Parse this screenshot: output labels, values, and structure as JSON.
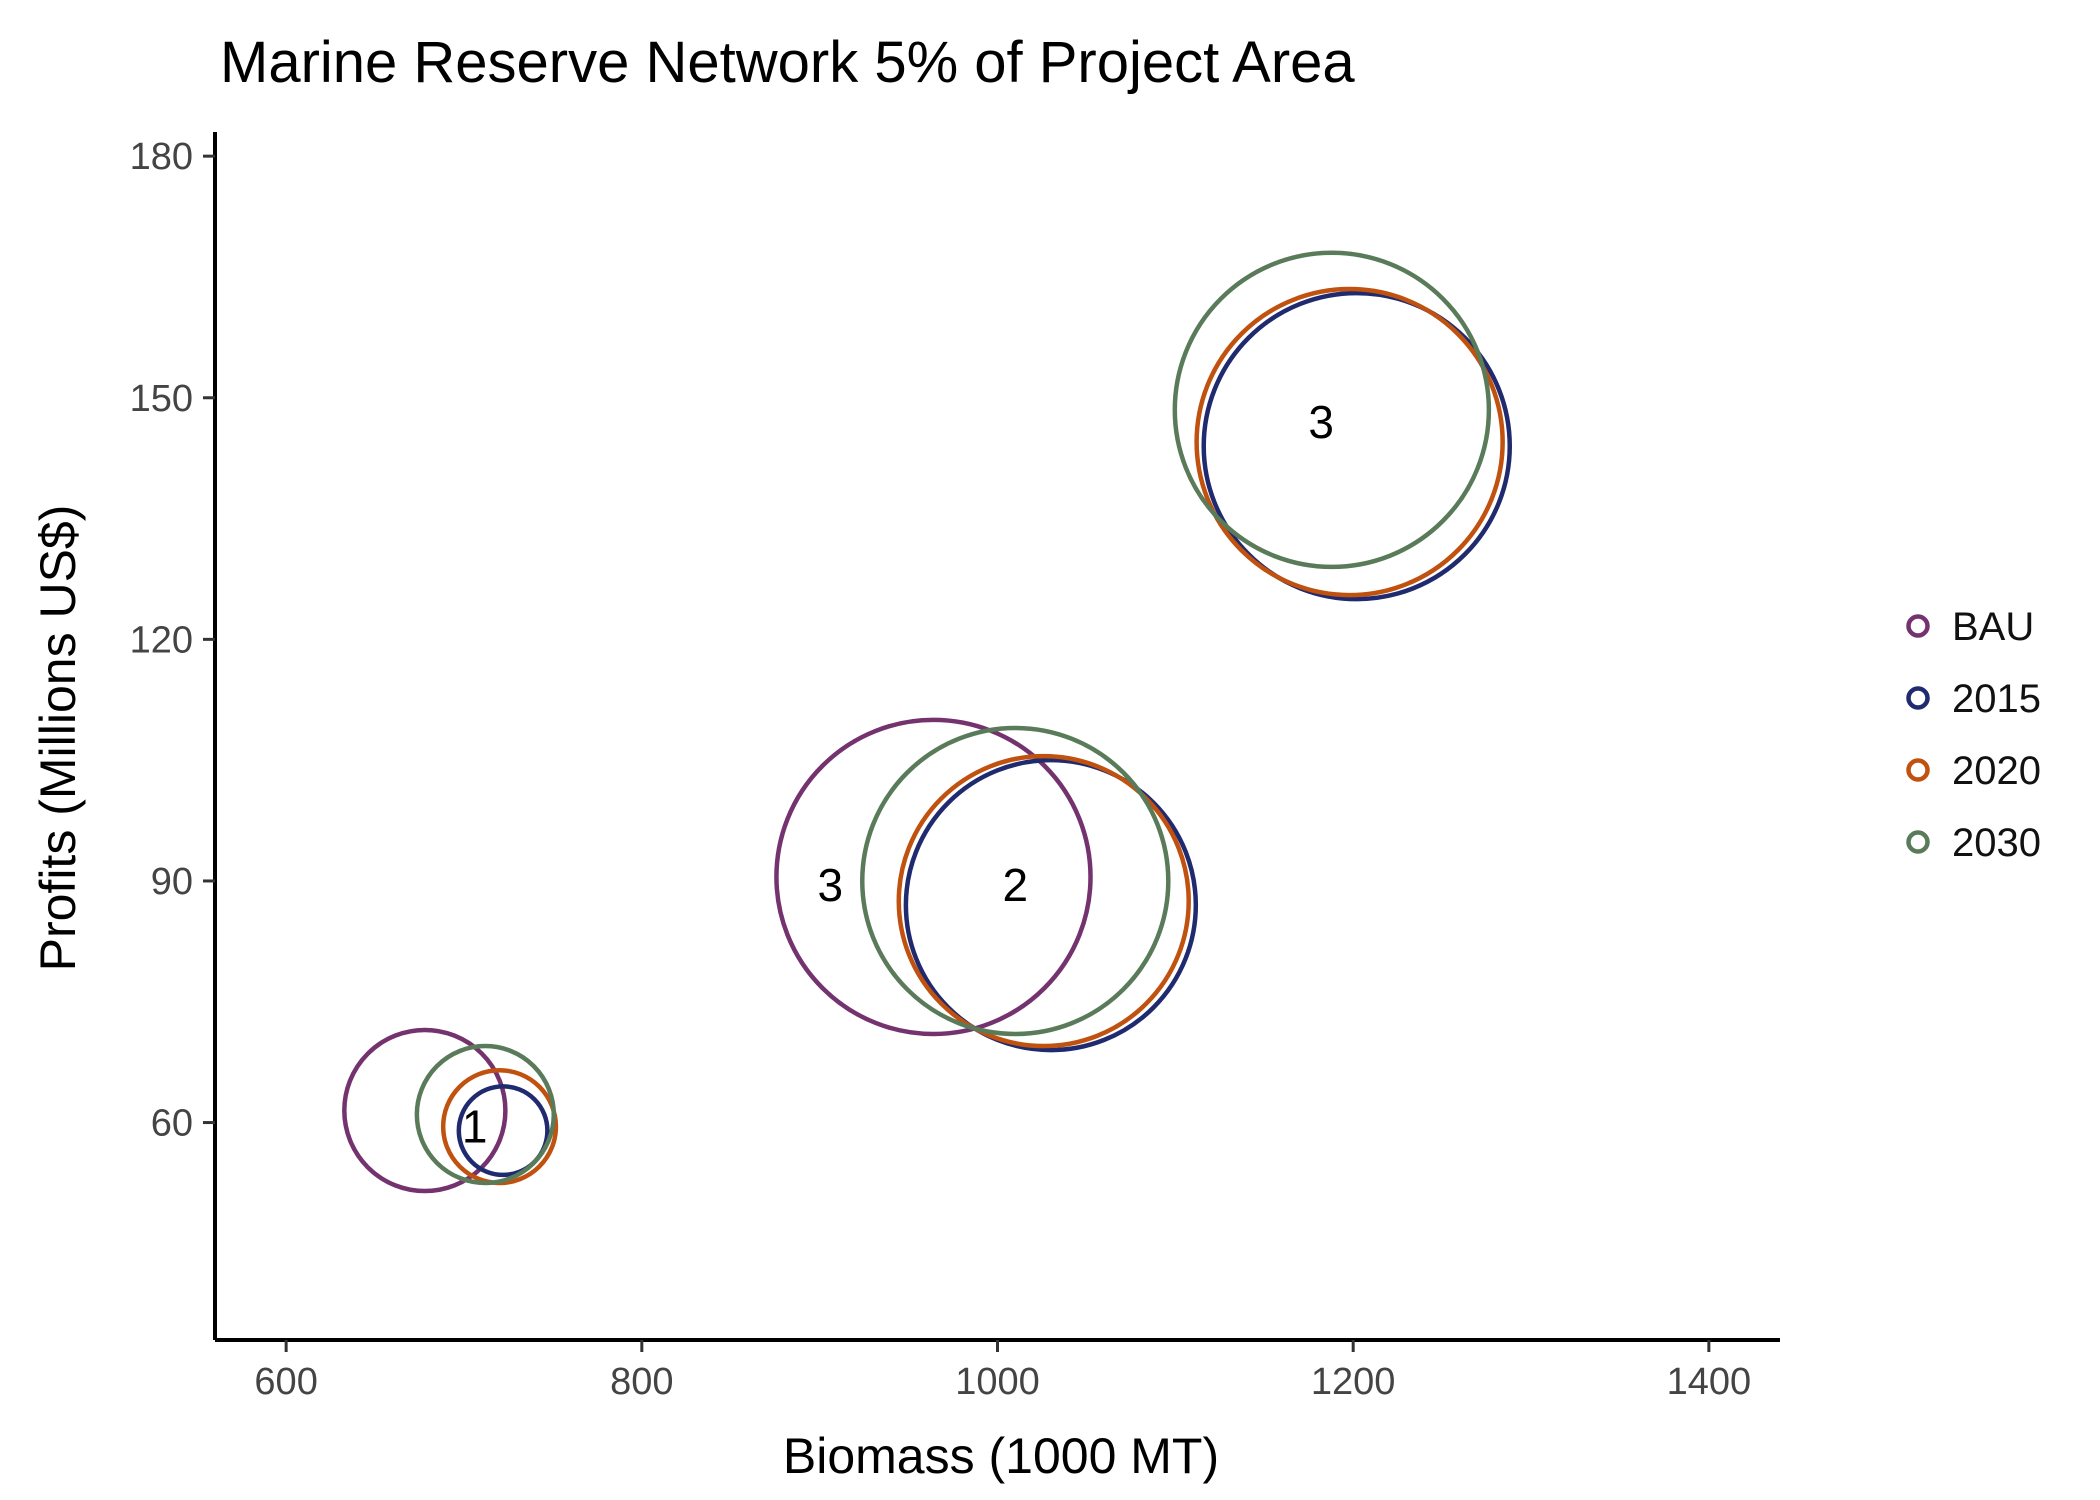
{
  "chart_data": {
    "type": "scatter",
    "title": "Marine Reserve Network 5% of Project Area",
    "xlabel": "Biomass (1000 MT)",
    "ylabel": "Profits (Millions US$)",
    "xlim": [
      560,
      1440
    ],
    "ylim": [
      33,
      183
    ],
    "xticks": [
      600,
      800,
      1000,
      1200,
      1400
    ],
    "yticks": [
      60,
      90,
      120,
      150,
      180
    ],
    "legend_position": "right",
    "series": [
      {
        "name": "BAU",
        "color": "#74336f",
        "points": [
          {
            "x": 678,
            "y": 61.5,
            "r": 10
          },
          {
            "x": 964,
            "y": 90.5,
            "r": 19.5
          }
        ]
      },
      {
        "name": "2015",
        "color": "#1f2a6f",
        "points": [
          {
            "x": 722,
            "y": 59,
            "r": 5.5
          },
          {
            "x": 1030,
            "y": 87,
            "r": 18
          },
          {
            "x": 1202,
            "y": 144,
            "r": 19
          }
        ]
      },
      {
        "name": "2020",
        "color": "#c0510f",
        "points": [
          {
            "x": 720,
            "y": 59.5,
            "r": 7
          },
          {
            "x": 1026,
            "y": 87.5,
            "r": 18
          },
          {
            "x": 1198,
            "y": 144.5,
            "r": 19
          }
        ]
      },
      {
        "name": "2030",
        "color": "#5a7b59",
        "points": [
          {
            "x": 712,
            "y": 61,
            "r": 8.5
          },
          {
            "x": 1010,
            "y": 90,
            "r": 19
          },
          {
            "x": 1188,
            "y": 148.5,
            "r": 19.5
          }
        ]
      }
    ],
    "annotations": [
      {
        "text": "1",
        "x": 706,
        "y": 59.5
      },
      {
        "text": "3",
        "x": 906,
        "y": 89.5
      },
      {
        "text": "2",
        "x": 1010,
        "y": 89.5
      },
      {
        "text": "3",
        "x": 1182,
        "y": 147
      }
    ]
  }
}
